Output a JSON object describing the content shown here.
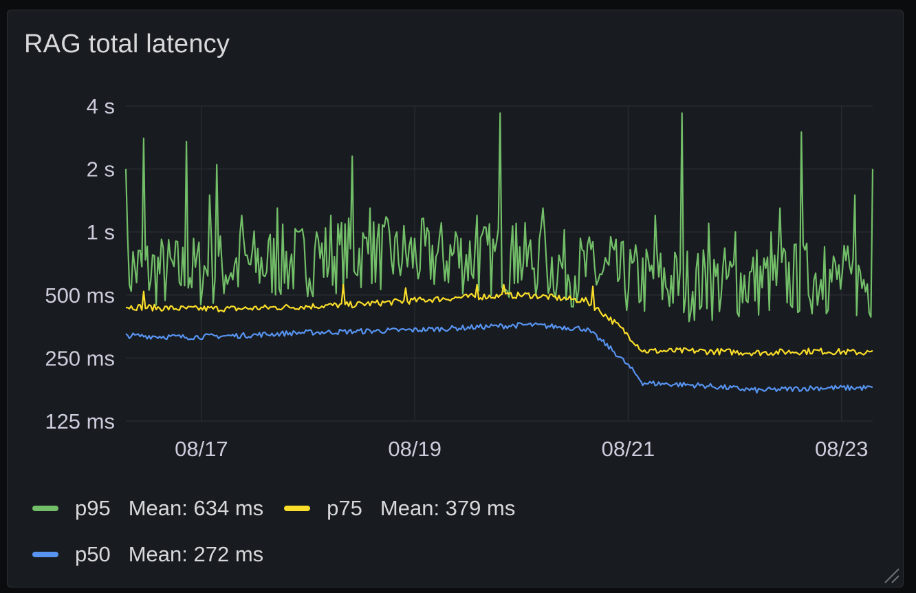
{
  "panel": {
    "title": "RAG total latency"
  },
  "chart_data": {
    "type": "line",
    "title": "RAG total latency",
    "y_scale": "log2",
    "y_unit": "ms",
    "ylim_ms": [
      125,
      4000
    ],
    "y_ticks": [
      {
        "value": 125,
        "label": "125 ms"
      },
      {
        "value": 250,
        "label": "250 ms"
      },
      {
        "value": 500,
        "label": "500 ms"
      },
      {
        "value": 1000,
        "label": "1 s"
      },
      {
        "value": 2000,
        "label": "2 s"
      },
      {
        "value": 4000,
        "label": "4 s"
      }
    ],
    "x_range_days": [
      "2024-08-16T07:00",
      "2024-08-23T07:00"
    ],
    "x_ticks": [
      {
        "date": "2024-08-17",
        "label": "08/17"
      },
      {
        "date": "2024-08-19",
        "label": "08/19"
      },
      {
        "date": "2024-08-21",
        "label": "08/21"
      },
      {
        "date": "2024-08-23",
        "label": "08/23"
      }
    ],
    "grid": true,
    "legend_placement": "bottom",
    "series": [
      {
        "name": "p95",
        "color": "#73bf69",
        "mean_label": "Mean: 634 ms",
        "baseline_ms": [
          640,
          610,
          660,
          700,
          760,
          740,
          720,
          700,
          620,
          560,
          540,
          560,
          580,
          540
        ],
        "spikes": [
          {
            "x": "2024-08-16T07:10",
            "ms": 2000
          },
          {
            "x": "2024-08-16T11:00",
            "ms": 2800
          },
          {
            "x": "2024-08-16T20:30",
            "ms": 2700
          },
          {
            "x": "2024-08-17T02:00",
            "ms": 1500
          },
          {
            "x": "2024-08-17T03:30",
            "ms": 2100
          },
          {
            "x": "2024-08-17T09:00",
            "ms": 1200
          },
          {
            "x": "2024-08-17T17:00",
            "ms": 1300
          },
          {
            "x": "2024-08-17T22:00",
            "ms": 1000
          },
          {
            "x": "2024-08-18T02:00",
            "ms": 1000
          },
          {
            "x": "2024-08-18T05:00",
            "ms": 1200
          },
          {
            "x": "2024-08-18T10:00",
            "ms": 2300
          },
          {
            "x": "2024-08-18T14:00",
            "ms": 1300
          },
          {
            "x": "2024-08-18T20:00",
            "ms": 1000
          },
          {
            "x": "2024-08-19T03:00",
            "ms": 1000
          },
          {
            "x": "2024-08-19T09:00",
            "ms": 1000
          },
          {
            "x": "2024-08-19T14:00",
            "ms": 1200
          },
          {
            "x": "2024-08-19T19:00",
            "ms": 3700
          },
          {
            "x": "2024-08-19T23:00",
            "ms": 1100
          },
          {
            "x": "2024-08-20T05:00",
            "ms": 1300
          },
          {
            "x": "2024-08-20T16:00",
            "ms": 900
          },
          {
            "x": "2024-08-20T20:00",
            "ms": 950
          },
          {
            "x": "2024-08-21T06:00",
            "ms": 1200
          },
          {
            "x": "2024-08-21T12:00",
            "ms": 3700
          },
          {
            "x": "2024-08-21T18:00",
            "ms": 1100
          },
          {
            "x": "2024-08-22T00:00",
            "ms": 1000
          },
          {
            "x": "2024-08-22T08:00",
            "ms": 1000
          },
          {
            "x": "2024-08-22T10:00",
            "ms": 1300
          },
          {
            "x": "2024-08-22T15:00",
            "ms": 3000
          },
          {
            "x": "2024-08-22T20:00",
            "ms": 850
          },
          {
            "x": "2024-08-23T03:00",
            "ms": 1500
          },
          {
            "x": "2024-08-23T07:00",
            "ms": 2000
          }
        ]
      },
      {
        "name": "p75",
        "color": "#fade2a",
        "mean_label": "Mean: 379 ms",
        "baseline_ms": [
          440,
          430,
          430,
          440,
          450,
          470,
          490,
          500,
          470,
          270,
          270,
          265,
          270,
          265
        ],
        "spikes": [
          {
            "x": "2024-08-16T11:00",
            "ms": 520
          },
          {
            "x": "2024-08-18T08:00",
            "ms": 560
          },
          {
            "x": "2024-08-18T22:00",
            "ms": 540
          },
          {
            "x": "2024-08-19T14:00",
            "ms": 560
          },
          {
            "x": "2024-08-19T20:00",
            "ms": 560
          },
          {
            "x": "2024-08-20T16:00",
            "ms": 550
          }
        ]
      },
      {
        "name": "p50",
        "color": "#5794f2",
        "mean_label": "Mean: 272 ms",
        "baseline_ms": [
          320,
          315,
          320,
          330,
          335,
          340,
          350,
          360,
          345,
          190,
          185,
          175,
          180,
          180
        ],
        "spikes": []
      }
    ]
  },
  "legend": [
    {
      "name": "p95",
      "stat": "Mean: 634 ms",
      "color": "#73bf69"
    },
    {
      "name": "p75",
      "stat": "Mean: 379 ms",
      "color": "#fade2a"
    },
    {
      "name": "p50",
      "stat": "Mean: 272 ms",
      "color": "#5794f2"
    }
  ]
}
